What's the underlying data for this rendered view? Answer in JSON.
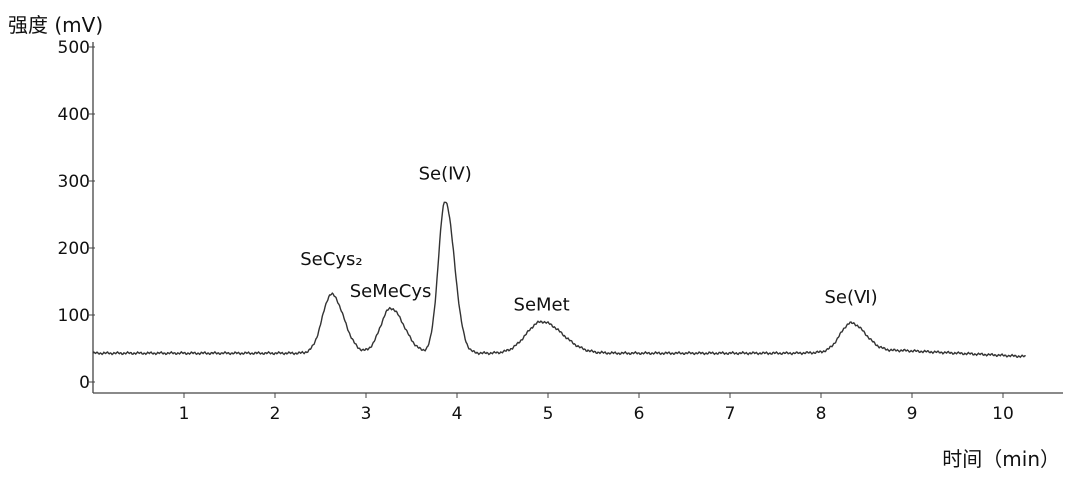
{
  "chart_data": {
    "type": "line",
    "title": "",
    "ylabel": "强度 (mV)",
    "xlabel": "时间（min）",
    "xlim": [
      0,
      11
    ],
    "ylim": [
      0,
      500
    ],
    "xticks": [
      1,
      2,
      3,
      4,
      5,
      6,
      7,
      8,
      9,
      10
    ],
    "xtick_labels": [
      "1",
      "2",
      "3",
      "4",
      "5",
      "6",
      "7",
      "8",
      "9",
      "10"
    ],
    "yticks": [
      0,
      100,
      200,
      300,
      400,
      500
    ],
    "ytick_labels": [
      "0",
      "100",
      "200",
      "300",
      "400",
      "500"
    ],
    "grid": false,
    "legend": "none",
    "line_color": "#333333",
    "baseline": [
      [
        0.0,
        43
      ],
      [
        2.3,
        43
      ],
      [
        6.0,
        43
      ],
      [
        7.7,
        43
      ],
      [
        8.9,
        47
      ],
      [
        9.5,
        43
      ],
      [
        10.25,
        38
      ]
    ],
    "peaks": [
      {
        "name": "SeCys₂",
        "x": 2.62,
        "height": 131,
        "sigma": 0.1
      },
      {
        "name": "SeMeCys",
        "x": 3.27,
        "height": 110,
        "sigma": 0.11
      },
      {
        "name": "Se(Ⅳ)",
        "x": 3.87,
        "height": 270,
        "sigma": 0.075
      },
      {
        "name": "SeMet",
        "x": 4.93,
        "height": 90,
        "sigma": 0.17
      },
      {
        "name": "Se(Ⅵ)",
        "x": 8.33,
        "height": 88,
        "sigma": 0.12
      }
    ],
    "peak_labels": [
      {
        "text": "SeCys₂",
        "x": 2.62,
        "y": 175
      },
      {
        "text": "SeMeCys",
        "x": 3.27,
        "y": 127
      },
      {
        "text": "Se(Ⅳ)",
        "x": 3.87,
        "y": 302
      },
      {
        "text": "SeMet",
        "x": 4.93,
        "y": 107
      },
      {
        "text": "Se(Ⅵ)",
        "x": 8.33,
        "y": 118
      }
    ]
  }
}
